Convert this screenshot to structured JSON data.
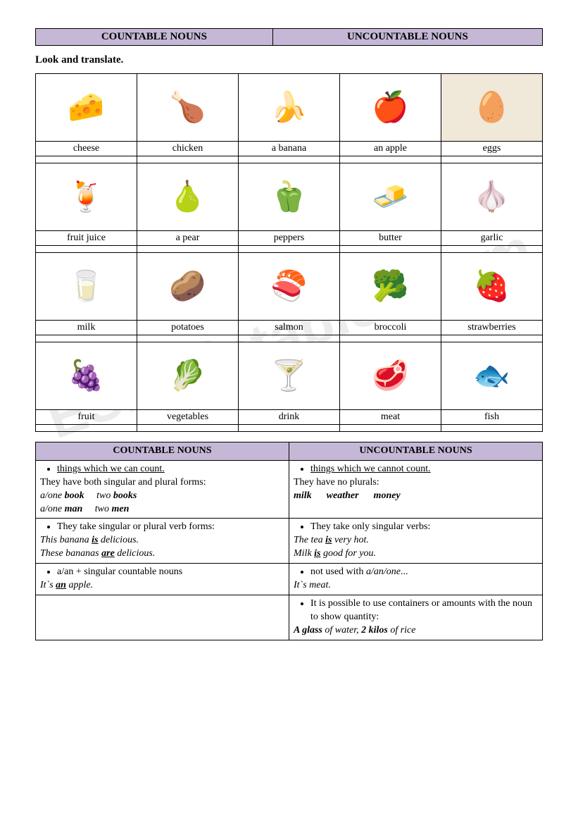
{
  "header": {
    "left": "COUNTABLE NOUNS",
    "right": "UNCOUNTABLE NOUNS"
  },
  "instruction": "Look and translate.",
  "watermark": "ESLprintables.com",
  "foods": {
    "rows": [
      {
        "items": [
          {
            "label": "cheese",
            "icon": "🧀",
            "bg": "#fff"
          },
          {
            "label": "chicken",
            "icon": "🍗",
            "bg": "#fff"
          },
          {
            "label": "a banana",
            "icon": "🍌",
            "bg": "#fff"
          },
          {
            "label": "an apple",
            "icon": "🍎",
            "bg": "#fff"
          },
          {
            "label": "eggs",
            "icon": "🥚",
            "bg": "#f0e8d8"
          }
        ]
      },
      {
        "items": [
          {
            "label": "fruit juice",
            "icon": "🍹",
            "bg": "#fff"
          },
          {
            "label": "a pear",
            "icon": "🍐",
            "bg": "#fff"
          },
          {
            "label": "peppers",
            "icon": "🫑",
            "bg": "#fff"
          },
          {
            "label": "butter",
            "icon": "🧈",
            "bg": "#fff"
          },
          {
            "label": "garlic",
            "icon": "🧄",
            "bg": "#fff"
          }
        ]
      },
      {
        "items": [
          {
            "label": "milk",
            "icon": "🥛",
            "bg": "#fff"
          },
          {
            "label": "potatoes",
            "icon": "🥔",
            "bg": "#fff"
          },
          {
            "label": "salmon",
            "icon": "🍣",
            "bg": "#fff"
          },
          {
            "label": "broccoli",
            "icon": "🥦",
            "bg": "#fff"
          },
          {
            "label": "strawberries",
            "icon": "🍓",
            "bg": "#fff"
          }
        ]
      },
      {
        "items": [
          {
            "label": "fruit",
            "icon": "🍇",
            "bg": "#fff"
          },
          {
            "label": "vegetables",
            "icon": "🥬",
            "bg": "#fff"
          },
          {
            "label": "drink",
            "icon": "🍸",
            "bg": "#fff"
          },
          {
            "label": "meat",
            "icon": "🥩",
            "bg": "#fff"
          },
          {
            "label": "fish",
            "icon": "🐟",
            "bg": "#fff"
          }
        ]
      }
    ]
  },
  "rules": {
    "header_left": "COUNTABLE NOUNS",
    "header_right": "UNCOUNTABLE NOUNS",
    "rows": [
      {
        "left": {
          "bullet": "things which we can count.",
          "bullet_underline": true,
          "text_after": "They have both singular and plural forms:",
          "examples": [
            {
              "pre": "a/one ",
              "b1": "book",
              "mid": "     two ",
              "b2": "books"
            },
            {
              "pre": "a/one ",
              "b1": "man",
              "mid": "     two ",
              "b2": "men"
            }
          ]
        },
        "right": {
          "bullet": "things which we cannot count.",
          "bullet_underline": true,
          "text_after": "They have no plurals:",
          "examples_line": {
            "parts": [
              "milk",
              "weather",
              "money"
            ]
          }
        }
      },
      {
        "left": {
          "bullet": "They take singular or plural verb forms:",
          "lines": [
            {
              "text": "This banana ",
              "bu": "is",
              "tail": " delicious."
            },
            {
              "text": "These bananas ",
              "bu": "are",
              "tail": " delicious."
            }
          ]
        },
        "right": {
          "bullet": "They take only singular verbs:",
          "lines": [
            {
              "text": "The tea  ",
              "bu": "is",
              "tail": " very hot."
            },
            {
              "text": "Milk ",
              "bu": "is",
              "tail": " good for you."
            }
          ]
        }
      },
      {
        "left": {
          "bullet": "a/an + singular countable nouns",
          "lines": [
            {
              "text": "It`s ",
              "bu": "an",
              "tail": " apple."
            }
          ]
        },
        "right": {
          "bullet": "not used with a/an/one...",
          "bullet_italic_tail": "a/an/one",
          "lines": [
            {
              "text": "It`s  meat.",
              "plain": true
            }
          ]
        }
      },
      {
        "left": {
          "empty": true
        },
        "right": {
          "bullet": "It is possible to use containers or amounts with the noun to show quantity:",
          "final": {
            "b1": "A glass",
            "m1": " of water, ",
            "b2": "2 kilos",
            "m2": " of rice"
          }
        }
      }
    ]
  },
  "colors": {
    "header_bg": "#c5b8d6",
    "border": "#000000",
    "page_bg": "#ffffff"
  }
}
